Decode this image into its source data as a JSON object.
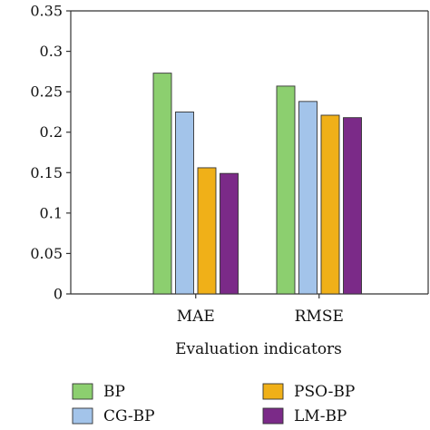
{
  "chart_data": {
    "type": "bar",
    "title": "",
    "xlabel": "Evaluation indicators",
    "ylabel": "",
    "ylim": [
      0,
      0.35
    ],
    "yticks": [
      "0",
      "0.05",
      "0.1",
      "0.15",
      "0.2",
      "0.25",
      "0.3",
      "0.35"
    ],
    "ytick_values": [
      0,
      0.05,
      0.1,
      0.15,
      0.2,
      0.25,
      0.3,
      0.35
    ],
    "categories": [
      "MAE",
      "RMSE"
    ],
    "series": [
      {
        "name": "BP",
        "color": "#8ccf6f",
        "values": [
          0.273,
          0.257
        ]
      },
      {
        "name": "CG-BP",
        "color": "#a3c4ea",
        "values": [
          0.225,
          0.238
        ]
      },
      {
        "name": "PSO-BP",
        "color": "#f0b018",
        "values": [
          0.156,
          0.221
        ]
      },
      {
        "name": "LM-BP",
        "color": "#7b2a88",
        "values": [
          0.149,
          0.218
        ]
      }
    ],
    "grid": false,
    "legend_position": "bottom"
  }
}
